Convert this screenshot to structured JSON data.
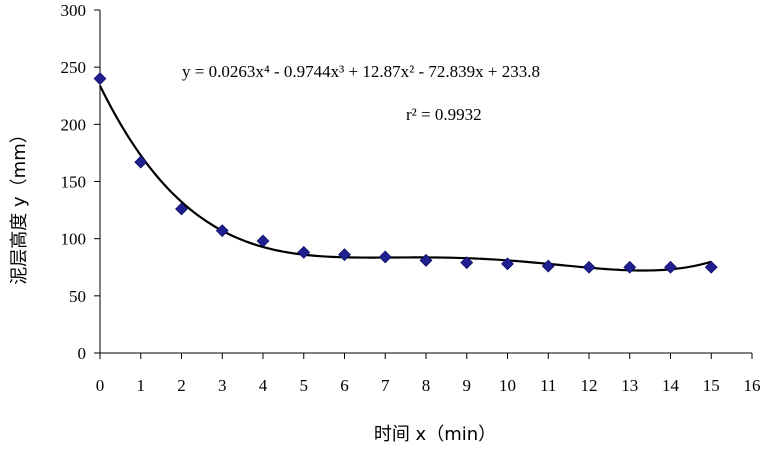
{
  "chart_data": {
    "type": "scatter",
    "title": "",
    "xlabel": "时间 x（min）",
    "ylabel": "泥层高度 y（mm）",
    "xlim": [
      0,
      16
    ],
    "ylim": [
      0,
      300
    ],
    "x_ticks": [
      0,
      1,
      2,
      3,
      4,
      5,
      6,
      7,
      8,
      9,
      10,
      11,
      12,
      13,
      14,
      15,
      16
    ],
    "y_ticks": [
      0,
      50,
      100,
      150,
      200,
      250,
      300
    ],
    "grid": false,
    "legend": "none",
    "marker": "diamond",
    "marker_color": "#1f1f8f",
    "series": [
      {
        "x": [
          0,
          1,
          2,
          3,
          4,
          5,
          6,
          7,
          8,
          9,
          10,
          11,
          12,
          13,
          14,
          15
        ],
        "values": [
          240,
          167,
          126,
          107,
          98,
          88,
          86,
          84,
          81,
          79,
          78,
          76,
          75,
          75,
          75,
          75
        ]
      }
    ],
    "trendline": {
      "type": "polynomial",
      "degree": 4,
      "coefficients": [
        0.0263,
        -0.9744,
        12.87,
        -72.839,
        233.8
      ],
      "equation_text": "y = 0.0263x⁴ - 0.9744x³ + 12.87x² - 72.839x + 233.8",
      "r2_text": "r² = 0.9932"
    }
  }
}
